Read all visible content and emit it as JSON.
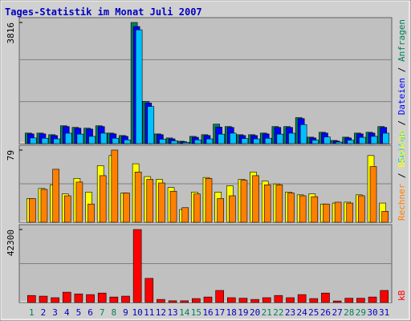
{
  "chart_data": [
    {
      "type": "bar",
      "title": "Tages-Statistik im Monat Juli 2007",
      "ylim": [
        0,
        3816
      ],
      "yticks": [
        3816
      ],
      "legend_separator": " / ",
      "series": [
        {
          "name": "Anfragen",
          "color": "#00805c",
          "values": [
            333,
            333,
            282,
            563,
            512,
            487,
            563,
            333,
            256,
            3816,
            1332,
            307,
            179,
            77,
            230,
            282,
            614,
            538,
            282,
            282,
            333,
            538,
            538,
            820,
            205,
            359,
            102,
            205,
            333,
            359,
            538
          ]
        },
        {
          "name": "Dateien",
          "color": "#0000ff",
          "values": [
            307,
            307,
            256,
            538,
            487,
            460,
            538,
            307,
            230,
            3688,
            1280,
            282,
            150,
            60,
            200,
            256,
            520,
            512,
            256,
            256,
            307,
            512,
            512,
            790,
            180,
            333,
            80,
            180,
            307,
            333,
            512
          ]
        },
        {
          "name": "Seiten",
          "color": "#00c0ff",
          "values": [
            180,
            170,
            150,
            330,
            300,
            230,
            330,
            170,
            120,
            3585,
            1170,
            140,
            90,
            40,
            120,
            150,
            300,
            330,
            160,
            150,
            170,
            300,
            330,
            600,
            110,
            210,
            50,
            110,
            200,
            230,
            330
          ]
        }
      ]
    },
    {
      "type": "bar",
      "ylim": [
        0,
        79
      ],
      "yticks": [
        79
      ],
      "legend_separator": " / ",
      "series": [
        {
          "name": "Besuche",
          "color": "#ffff00",
          "values": [
            26,
            37,
            41,
            31,
            48,
            33,
            62,
            73,
            32,
            64,
            50,
            47,
            38,
            14,
            33,
            49,
            33,
            40,
            47,
            55,
            45,
            42,
            33,
            30,
            31,
            20,
            21,
            22,
            30,
            73,
            21
          ]
        },
        {
          "name": "Rechner",
          "color": "#ff8000",
          "values": [
            26,
            36,
            58,
            29,
            44,
            20,
            51,
            79,
            32,
            55,
            47,
            43,
            34,
            16,
            31,
            48,
            26,
            29,
            46,
            51,
            41,
            41,
            32,
            29,
            28,
            20,
            22,
            21,
            29,
            61,
            12
          ]
        }
      ]
    },
    {
      "type": "bar",
      "ylim": [
        0,
        42300
      ],
      "yticks": [
        42300
      ],
      "categories": [
        "1",
        "2",
        "3",
        "4",
        "5",
        "6",
        "7",
        "8",
        "9",
        "10",
        "11",
        "12",
        "13",
        "14",
        "15",
        "16",
        "17",
        "18",
        "19",
        "20",
        "21",
        "22",
        "23",
        "24",
        "25",
        "26",
        "27",
        "28",
        "29",
        "30",
        "31"
      ],
      "category_colors": [
        "#00805c",
        "#0000c0",
        "#0000c0",
        "#0000c0",
        "#0000c0",
        "#0000c0",
        "#00805c",
        "#00805c",
        "#0000c0",
        "#0000c0",
        "#0000c0",
        "#0000c0",
        "#0000c0",
        "#00805c",
        "#00805c",
        "#0000c0",
        "#0000c0",
        "#0000c0",
        "#0000c0",
        "#0000c0",
        "#00805c",
        "#00805c",
        "#0000c0",
        "#0000c0",
        "#0000c0",
        "#0000c0",
        "#0000c0",
        "#00805c",
        "#00805c",
        "#0000c0",
        "#0000c0"
      ],
      "series": [
        {
          "name": "kB",
          "color": "#ff0000",
          "values": [
            4100,
            3700,
            2800,
            6000,
            5000,
            4600,
            5500,
            3200,
            3700,
            42300,
            14000,
            1800,
            1000,
            1000,
            2300,
            3200,
            7000,
            2800,
            2500,
            1800,
            2800,
            4100,
            2800,
            4600,
            2300,
            5500,
            900,
            2500,
            2500,
            3200,
            7000
          ]
        }
      ]
    }
  ]
}
